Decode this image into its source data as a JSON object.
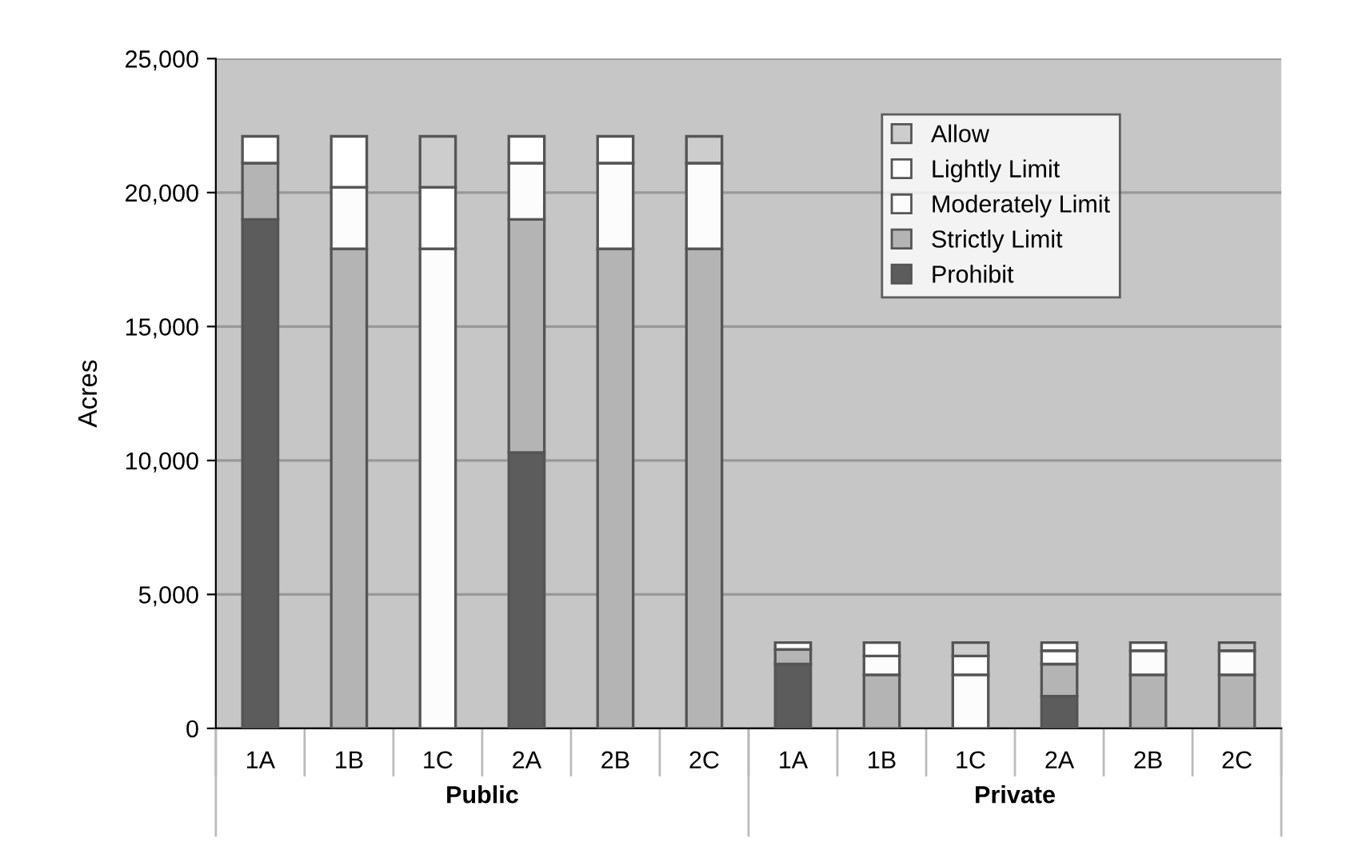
{
  "chart_data": {
    "type": "bar",
    "stacked": true,
    "ylabel": "Acres",
    "categories": [
      "1A",
      "1B",
      "1C",
      "2A",
      "2B",
      "2C",
      "1A",
      "1B",
      "1C",
      "2A",
      "2B",
      "2C"
    ],
    "annotations": [
      "Public",
      "Private"
    ],
    "series": [
      {
        "name": "Prohibit",
        "color": "#5c5c5c",
        "values": [
          19000,
          0,
          0,
          10300,
          0,
          0,
          2400,
          0,
          0,
          1200,
          0,
          0
        ]
      },
      {
        "name": "Strictly Limit",
        "color": "#b4b4b4",
        "values": [
          2100,
          17900,
          0,
          8700,
          17900,
          17900,
          550,
          2000,
          0,
          1200,
          2000,
          2000
        ]
      },
      {
        "name": "Moderately Limit",
        "color": "#fcfcfc",
        "values": [
          0,
          2300,
          17900,
          2100,
          3200,
          3200,
          0,
          700,
          2000,
          500,
          900,
          900
        ]
      },
      {
        "name": "Lightly Limit",
        "color": "#ffffff",
        "values": [
          1000,
          1900,
          2300,
          1000,
          1000,
          0,
          250,
          500,
          700,
          300,
          300,
          0
        ]
      },
      {
        "name": "Allow",
        "color": "#cdcdcd",
        "values": [
          0,
          0,
          1900,
          0,
          0,
          1000,
          0,
          0,
          500,
          0,
          0,
          300
        ]
      }
    ],
    "ylim": [
      0,
      25000
    ],
    "yticks": [
      0,
      {
        "value": 5000,
        "label": "5,000"
      },
      {
        "value": 10000,
        "label": "10,000"
      },
      {
        "value": 15000,
        "label": "15,000"
      },
      {
        "value": 20000,
        "label": "20,000"
      },
      {
        "value": 25000,
        "label": "25,000"
      }
    ],
    "grid": "y",
    "legend": "right"
  }
}
